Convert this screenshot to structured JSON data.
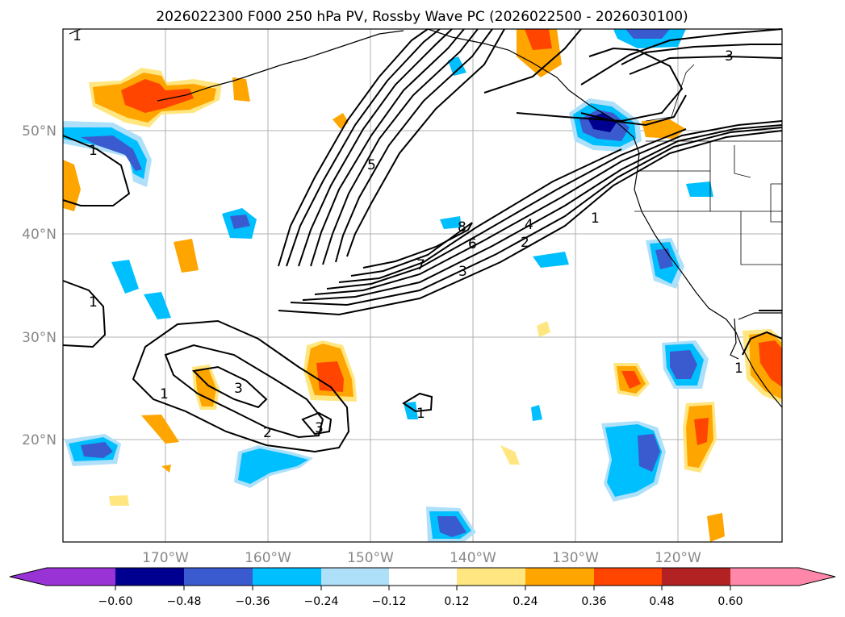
{
  "title": "2026022300 F000 250 hPa PV, Rossby Wave PC (2026022500 - 2026030100)",
  "lat_labels": [
    "50°N",
    "40°N",
    "30°N",
    "20°N"
  ],
  "lon_labels": [
    "170°W",
    "160°W",
    "150°W",
    "140°W",
    "130°W",
    "120°W"
  ],
  "contour_labels": [
    "1",
    "1",
    "1",
    "1",
    "1",
    "1",
    "1",
    "2",
    "2",
    "3",
    "3",
    "3",
    "3",
    "4",
    "5",
    "6",
    "7",
    "8"
  ],
  "colorbar": {
    "ticks": [
      "−0.60",
      "−0.48",
      "−0.36",
      "−0.24",
      "−0.12",
      "0.12",
      "0.24",
      "0.36",
      "0.48",
      "0.60"
    ],
    "colors": {
      "below_min": "#9a33d6",
      "neg_060_048": "#000090",
      "neg_048_036": "#3a5bd0",
      "neg_036_024": "#00bfff",
      "neg_024_012": "#aee0fa",
      "neutral": "#ffffff",
      "pos_012_024": "#ffe680",
      "pos_024_036": "#ffa500",
      "pos_036_048": "#ff4500",
      "pos_048_060": "#b22222",
      "above_max": "#ff88aa"
    }
  }
}
